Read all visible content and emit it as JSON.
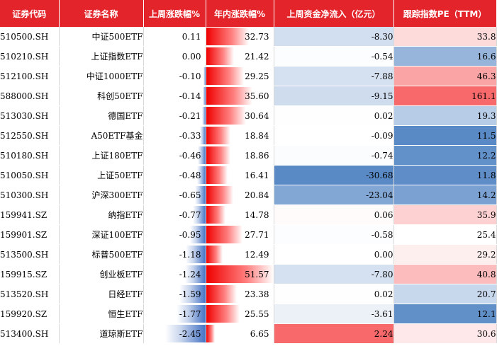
{
  "headers": [
    "证券代码",
    "证券名称",
    "上周涨跌幅%",
    "年内涨跌幅%",
    "上周资金净流入（亿元）",
    "跟踪指数PE（TTM）"
  ],
  "rows": [
    {
      "code": "510500.SH",
      "name": "中证500ETF",
      "weekly": "0.11",
      "ytd": "32.73",
      "flow": "-8.30",
      "pe": "33.8"
    },
    {
      "code": "510210.SH",
      "name": "上证指数ETF",
      "weekly": "0.00",
      "ytd": "21.42",
      "flow": "-0.54",
      "pe": "16.6"
    },
    {
      "code": "512100.SH",
      "name": "中证1000ETF",
      "weekly": "-0.10",
      "ytd": "29.25",
      "flow": "-7.88",
      "pe": "46.3"
    },
    {
      "code": "588000.SH",
      "name": "科创50ETF",
      "weekly": "-0.14",
      "ytd": "35.60",
      "flow": "-9.15",
      "pe": "161.1"
    },
    {
      "code": "513030.SH",
      "name": "德国ETF",
      "weekly": "-0.21",
      "ytd": "30.64",
      "flow": "0.02",
      "pe": "19.3"
    },
    {
      "code": "512550.SH",
      "name": "A50ETF基金",
      "weekly": "-0.33",
      "ytd": "18.84",
      "flow": "-0.09",
      "pe": "11.5"
    },
    {
      "code": "510180.SH",
      "name": "上证180ETF",
      "weekly": "-0.46",
      "ytd": "18.86",
      "flow": "-0.74",
      "pe": "12.2"
    },
    {
      "code": "510050.SH",
      "name": "上证50ETF",
      "weekly": "-0.48",
      "ytd": "16.41",
      "flow": "-30.68",
      "pe": "11.8"
    },
    {
      "code": "510300.SH",
      "name": "沪深300ETF",
      "weekly": "-0.65",
      "ytd": "20.84",
      "flow": "-23.04",
      "pe": "14.2"
    },
    {
      "code": "159941.SZ",
      "name": "纳指ETF",
      "weekly": "-0.77",
      "ytd": "14.78",
      "flow": "0.06",
      "pe": "35.9"
    },
    {
      "code": "159901.SZ",
      "name": "深证100ETF",
      "weekly": "-0.95",
      "ytd": "27.71",
      "flow": "-0.58",
      "pe": "25.4"
    },
    {
      "code": "513500.SH",
      "name": "标普500ETF",
      "weekly": "-1.18",
      "ytd": "12.49",
      "flow": "0.00",
      "pe": "29.2"
    },
    {
      "code": "159915.SZ",
      "name": "创业板ETF",
      "weekly": "-1.24",
      "ytd": "51.57",
      "flow": "-7.80",
      "pe": "40.8"
    },
    {
      "code": "513520.SH",
      "name": "日经ETF",
      "weekly": "-1.59",
      "ytd": "23.38",
      "flow": "0.02",
      "pe": "20.7"
    },
    {
      "code": "159920.SZ",
      "name": "恒生ETF",
      "weekly": "-1.77",
      "ytd": "25.55",
      "flow": "-3.61",
      "pe": "12.1"
    },
    {
      "code": "513400.SH",
      "name": "道琼斯ETF",
      "weekly": "-2.45",
      "ytd": "6.65",
      "flow": "2.24",
      "pe": "30.6"
    }
  ],
  "colors": {
    "header_bg": "#e3242b",
    "positive": "#f8696b",
    "negative": "#5a8ac6",
    "neutral": "#ffffff"
  },
  "chart_data": {
    "type": "table",
    "columns": [
      "证券代码",
      "证券名称",
      "上周涨跌幅%",
      "年内涨跌幅%",
      "上周资金净流入（亿元）",
      "跟踪指数PE（TTM）"
    ],
    "weekly_change": [
      0.11,
      0.0,
      -0.1,
      -0.14,
      -0.21,
      -0.33,
      -0.46,
      -0.48,
      -0.65,
      -0.77,
      -0.95,
      -1.18,
      -1.24,
      -1.59,
      -1.77,
      -2.45
    ],
    "ytd_change": [
      32.73,
      21.42,
      29.25,
      35.6,
      30.64,
      18.84,
      18.86,
      16.41,
      20.84,
      14.78,
      27.71,
      12.49,
      51.57,
      23.38,
      25.55,
      6.65
    ],
    "net_inflow": [
      -8.3,
      -0.54,
      -7.88,
      -9.15,
      0.02,
      -0.09,
      -0.74,
      -30.68,
      -23.04,
      0.06,
      -0.58,
      0.0,
      -7.8,
      0.02,
      -3.61,
      2.24
    ],
    "pe_ttm": [
      33.8,
      16.6,
      46.3,
      161.1,
      19.3,
      11.5,
      12.2,
      11.8,
      14.2,
      35.9,
      25.4,
      29.2,
      40.8,
      20.7,
      12.1,
      30.6
    ]
  }
}
